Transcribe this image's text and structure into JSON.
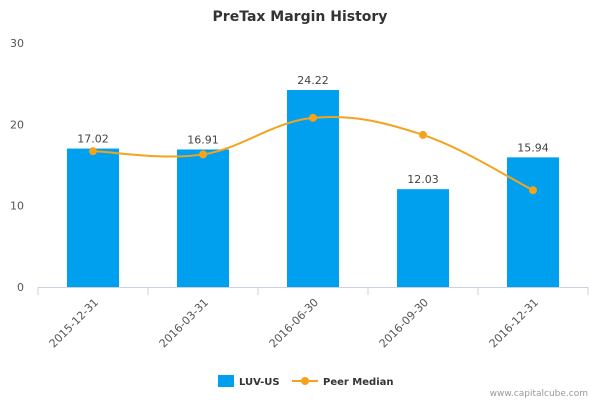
{
  "chart_data": {
    "type": "bar",
    "title": "PreTax Margin History",
    "categories": [
      "2015-12-31",
      "2016-03-31",
      "2016-06-30",
      "2016-09-30",
      "2016-12-31"
    ],
    "series": [
      {
        "name": "LUV-US",
        "type": "bar",
        "values": [
          17.02,
          16.91,
          24.22,
          12.03,
          15.94
        ],
        "value_labels": [
          "17.02",
          "16.91",
          "24.22",
          "12.03",
          "15.94"
        ],
        "color": "#00a0ef"
      },
      {
        "name": "Peer Median",
        "type": "line",
        "values": [
          16.7,
          16.3,
          20.8,
          18.7,
          11.9
        ],
        "color": "#f5a21c"
      }
    ],
    "ylim": [
      0,
      30
    ],
    "yticks": [
      0,
      10,
      20,
      30
    ],
    "ytick_labels": [
      "0",
      "10",
      "20",
      "30"
    ],
    "grid": false,
    "legend_position": "bottom-center",
    "axis_color": "#c8d2e3"
  },
  "watermark": "www.capitalcube.com"
}
